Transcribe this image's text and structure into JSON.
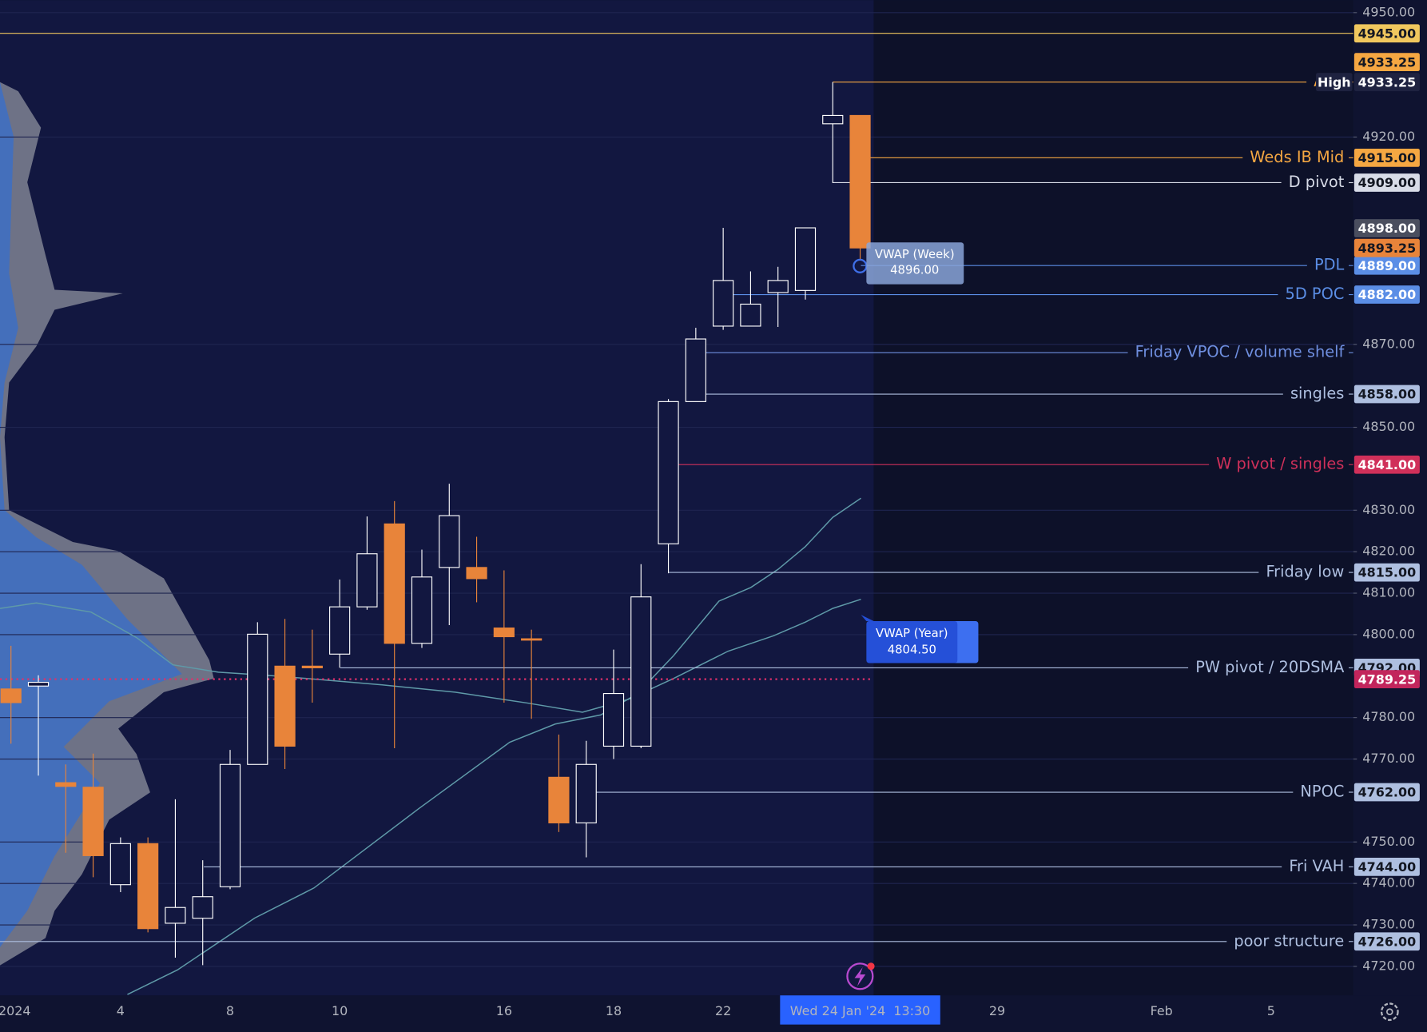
{
  "chart_data": {
    "type": "candlestick",
    "categories": [
      "2024",
      null,
      null,
      null,
      "4",
      null,
      null,
      null,
      "8",
      null,
      null,
      null,
      "10",
      null,
      null,
      null,
      null,
      null,
      "16",
      null,
      null,
      null,
      "18",
      null,
      null,
      null,
      "22",
      null,
      null,
      null,
      null,
      "Wed 24 Jan '24  13:30",
      null,
      null,
      null,
      null,
      "29",
      null,
      null,
      null,
      null,
      null,
      "Feb",
      null,
      null,
      null,
      "5"
    ],
    "open": [
      4786.9,
      4787.6,
      4764.3,
      4763.2,
      4739.7,
      4749.6,
      4730.4,
      4731.6,
      4739.2,
      4768.7,
      4792.4,
      4792.4,
      4795.3,
      4806.7,
      4826.7,
      4797.9,
      4816.2,
      4816.2,
      4801.6,
      4799.0,
      4765.6,
      4754.6,
      4773.1,
      4773.1,
      4821.9,
      4856.2,
      4874.4,
      4874.4,
      4882.5,
      4883.0,
      4923.2,
      4925.2,
      null,
      null,
      null,
      null,
      null,
      null,
      null,
      null,
      null,
      null,
      null,
      null,
      null,
      null,
      null
    ],
    "high": [
      4797.3,
      4790.2,
      4768.7,
      4771.3,
      4751.1,
      4751.1,
      4760.3,
      4745.6,
      4772.2,
      4803.0,
      4803.8,
      4801.2,
      4813.3,
      4828.5,
      4832.2,
      4820.5,
      4836.4,
      4823.6,
      4815.5,
      4801.2,
      4775.9,
      4774.4,
      4796.4,
      4817.0,
      4856.8,
      4874.0,
      4898.1,
      4887.6,
      4888.7,
      4898.1,
      4933.25,
      4925.2,
      null,
      null,
      null,
      null,
      null,
      null,
      null,
      null,
      null,
      null,
      null,
      null,
      null,
      null,
      null
    ],
    "low": [
      4773.7,
      4766.0,
      4747.4,
      4741.5,
      4737.9,
      4728.2,
      4722.1,
      4720.3,
      4738.6,
      4768.7,
      4767.6,
      4783.6,
      4792.0,
      4806.0,
      4772.6,
      4796.8,
      4802.3,
      4807.8,
      4783.6,
      4779.7,
      4752.4,
      4746.3,
      4770.0,
      4772.6,
      4814.8,
      4856.2,
      4873.5,
      4874.4,
      4874.2,
      4880.8,
      4908.9,
      4890.2,
      null,
      null,
      null,
      null,
      null,
      null,
      null,
      null,
      null,
      null,
      null,
      null,
      null,
      null,
      null
    ],
    "close": [
      4783.6,
      4788.5,
      4763.4,
      4746.7,
      4749.6,
      4729.1,
      4734.2,
      4736.8,
      4768.7,
      4800.1,
      4773.1,
      4792.0,
      4806.7,
      4819.5,
      4797.9,
      4813.9,
      4828.7,
      4813.5,
      4799.5,
      4798.8,
      4754.6,
      4768.7,
      4785.8,
      4809.1,
      4856.2,
      4871.3,
      4885.4,
      4879.7,
      4885.4,
      4898.1,
      4925.2,
      4893.25,
      null,
      null,
      null,
      null,
      null,
      null,
      null,
      null,
      null,
      null,
      null,
      null,
      null,
      null,
      null
    ],
    "up_color": "#ffffff",
    "down_color": "#e8843a",
    "ylim": [
      4713,
      4953
    ],
    "yticks": [
      {
        "value": 4720,
        "label": "4720.00"
      },
      {
        "value": 4730,
        "label": "4730.00"
      },
      {
        "value": 4740,
        "label": "4740.00"
      },
      {
        "value": 4750,
        "label": "4750.00"
      },
      {
        "value": 4770,
        "label": "4770.00"
      },
      {
        "value": 4780,
        "label": "4780.00"
      },
      {
        "value": 4800,
        "label": "4800.00"
      },
      {
        "value": 4810,
        "label": "4810.00"
      },
      {
        "value": 4820,
        "label": "4820.00"
      },
      {
        "value": 4830,
        "label": "4830.00"
      },
      {
        "value": 4850,
        "label": "4850.00"
      },
      {
        "value": 4870,
        "label": "4870.00"
      },
      {
        "value": 4920,
        "label": "4920.00"
      },
      {
        "value": 4950,
        "label": "4950.00"
      }
    ],
    "grid": true,
    "levels": [
      {
        "value": 4945,
        "value_label": "4945.00",
        "color": "#f0c75e"
      },
      {
        "name": "ATH",
        "value": 4933.25,
        "value_label": "4933.25",
        "color": "#f5a742"
      },
      {
        "name": "Weds IB Mid",
        "value": 4915,
        "value_label": "4915.00",
        "color": "#f5a742"
      },
      {
        "name": "D pivot",
        "value": 4909,
        "value_label": "4909.00",
        "color": "#d8dce8"
      },
      {
        "name": "PDL",
        "value": 4889,
        "value_label": "4889.00",
        "color": "#5b8ee6"
      },
      {
        "name": "5D POC",
        "value": 4882,
        "value_label": "4882.00",
        "color": "#5b8ee6"
      },
      {
        "name": "Friday VPOC / volume shelf",
        "value": 4868,
        "color": "#6f8fe0"
      },
      {
        "name": "singles",
        "value": 4858,
        "value_label": "4858.00",
        "color": "#aebfe0"
      },
      {
        "name": "W pivot / singles",
        "value": 4841,
        "value_label": "4841.00",
        "color": "#d0305a"
      },
      {
        "name": "Friday low",
        "value": 4815,
        "value_label": "4815.00",
        "color": "#aebfe0"
      },
      {
        "name": "PW pivot / 20DSMA",
        "value": 4792,
        "value_label": "4792.00",
        "color": "#aebfe0"
      },
      {
        "name": "NPOC",
        "value": 4762,
        "value_label": "4762.00",
        "color": "#aebfe0"
      },
      {
        "name": "Fri VAH",
        "value": 4744,
        "value_label": "4744.00",
        "color": "#aebfe0"
      },
      {
        "name": "poor structure",
        "value": 4726,
        "value_label": "4726.00",
        "color": "#aebfe0"
      }
    ],
    "badges": [
      {
        "value": 4898,
        "label": "4898.00",
        "color": "#4a4e5e"
      },
      {
        "value": 4893.25,
        "label": "4893.25",
        "color": "#e8843a"
      },
      {
        "value": 4789.25,
        "label": "4789.25",
        "color": "#c2255c"
      }
    ],
    "high_badge": {
      "name": "High",
      "value": 4933.25,
      "label": "4933.25"
    },
    "vwap_week": {
      "name": "VWAP (Week)",
      "value": 4896,
      "value_label": "4896.00"
    },
    "vwap_year": {
      "name": "VWAP (Year)",
      "value": 4804.5,
      "value_label": "4804.50"
    }
  }
}
